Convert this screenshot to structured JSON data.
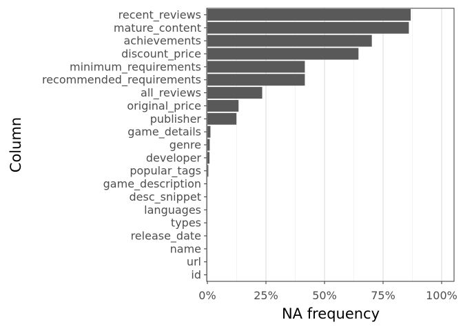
{
  "chart_data": {
    "type": "bar",
    "orientation": "horizontal",
    "title": "",
    "xlabel": "NA frequency",
    "ylabel": "Column",
    "xlim": [
      0,
      1
    ],
    "x_ticks": [
      0,
      0.25,
      0.5,
      0.75,
      1.0
    ],
    "x_tick_labels": [
      "0%",
      "25%",
      "50%",
      "75%",
      "100%"
    ],
    "grid": true,
    "bar_color": "#595959",
    "categories": [
      "recent_reviews",
      "mature_content",
      "achievements",
      "discount_price",
      "minimum_requirements",
      "recommended_requirements",
      "all_reviews",
      "original_price",
      "publisher",
      "game_details",
      "genre",
      "developer",
      "popular_tags",
      "game_description",
      "desc_snippet",
      "languages",
      "types",
      "release_date",
      "name",
      "url",
      "id"
    ],
    "values": [
      0.868,
      0.86,
      0.702,
      0.645,
      0.416,
      0.416,
      0.234,
      0.133,
      0.124,
      0.013,
      0.01,
      0.009,
      0.004,
      0.0,
      0.0,
      0.0,
      0.0,
      0.0,
      0.0,
      0.0,
      0.0
    ]
  }
}
